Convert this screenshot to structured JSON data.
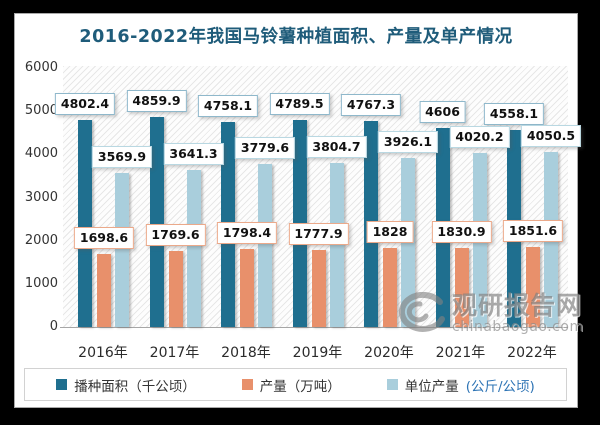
{
  "title": "2016-2022年我国马铃薯种植面积、产量及单产情况",
  "colors": {
    "title": "#1f5c7a",
    "planting_area_bar": "#1f6f8f",
    "planting_area_label_border": "#8fb8cb",
    "production_bar": "#e8906b",
    "production_label_border": "#eba98a",
    "yield_bar": "#a9cedc",
    "yield_label_border": "#b9d8e2",
    "legend_unit_blue": "#2e74b5"
  },
  "chart_data": {
    "type": "bar",
    "title": "2016-2022年我国马铃薯种植面积、产量及单产情况",
    "categories": [
      "2016年",
      "2017年",
      "2018年",
      "2019年",
      "2020年",
      "2021年",
      "2022年"
    ],
    "series": [
      {
        "name": "播种面积（千公顷）",
        "color": "#1f6f8f",
        "label_border": "#8fb8cb",
        "values": [
          4802.4,
          4859.9,
          4758.1,
          4789.5,
          4767.3,
          4606,
          4558.1
        ]
      },
      {
        "name": "产量（万吨）",
        "color": "#e8906b",
        "label_border": "#eba98a",
        "values": [
          1698.6,
          1769.6,
          1798.4,
          1777.9,
          1828,
          1830.9,
          1851.6
        ]
      },
      {
        "name": "单位产量(公斤/公顷)",
        "color": "#a9cedc",
        "label_border": "#b9d8e2",
        "values": [
          3569.9,
          3641.3,
          3779.6,
          3804.7,
          3926.1,
          4020.2,
          4050.5
        ]
      }
    ],
    "ylim": [
      0,
      6000
    ],
    "yticks": [
      0,
      1000,
      2000,
      3000,
      4000,
      5000,
      6000
    ],
    "grid": false,
    "plot_background": "diagonal-hatch",
    "legend_position": "bottom",
    "data_labels": "boxed, shown above every bar"
  },
  "legend": {
    "items": [
      {
        "marker": "#1f6f8f",
        "parts": [
          {
            "text": "播种面积（千公顷）",
            "color": "#333333"
          }
        ]
      },
      {
        "marker": "#e8906b",
        "parts": [
          {
            "text": "产量（万吨）",
            "color": "#333333"
          }
        ]
      },
      {
        "marker": "#a9cedc",
        "parts": [
          {
            "text": "单位产量",
            "color": "#333333"
          },
          {
            "text": "(公斤/公顷)",
            "color": "#2e74b5"
          }
        ]
      }
    ]
  },
  "watermark": {
    "name": "观研报告网",
    "domain": "chinabaogao.com"
  }
}
